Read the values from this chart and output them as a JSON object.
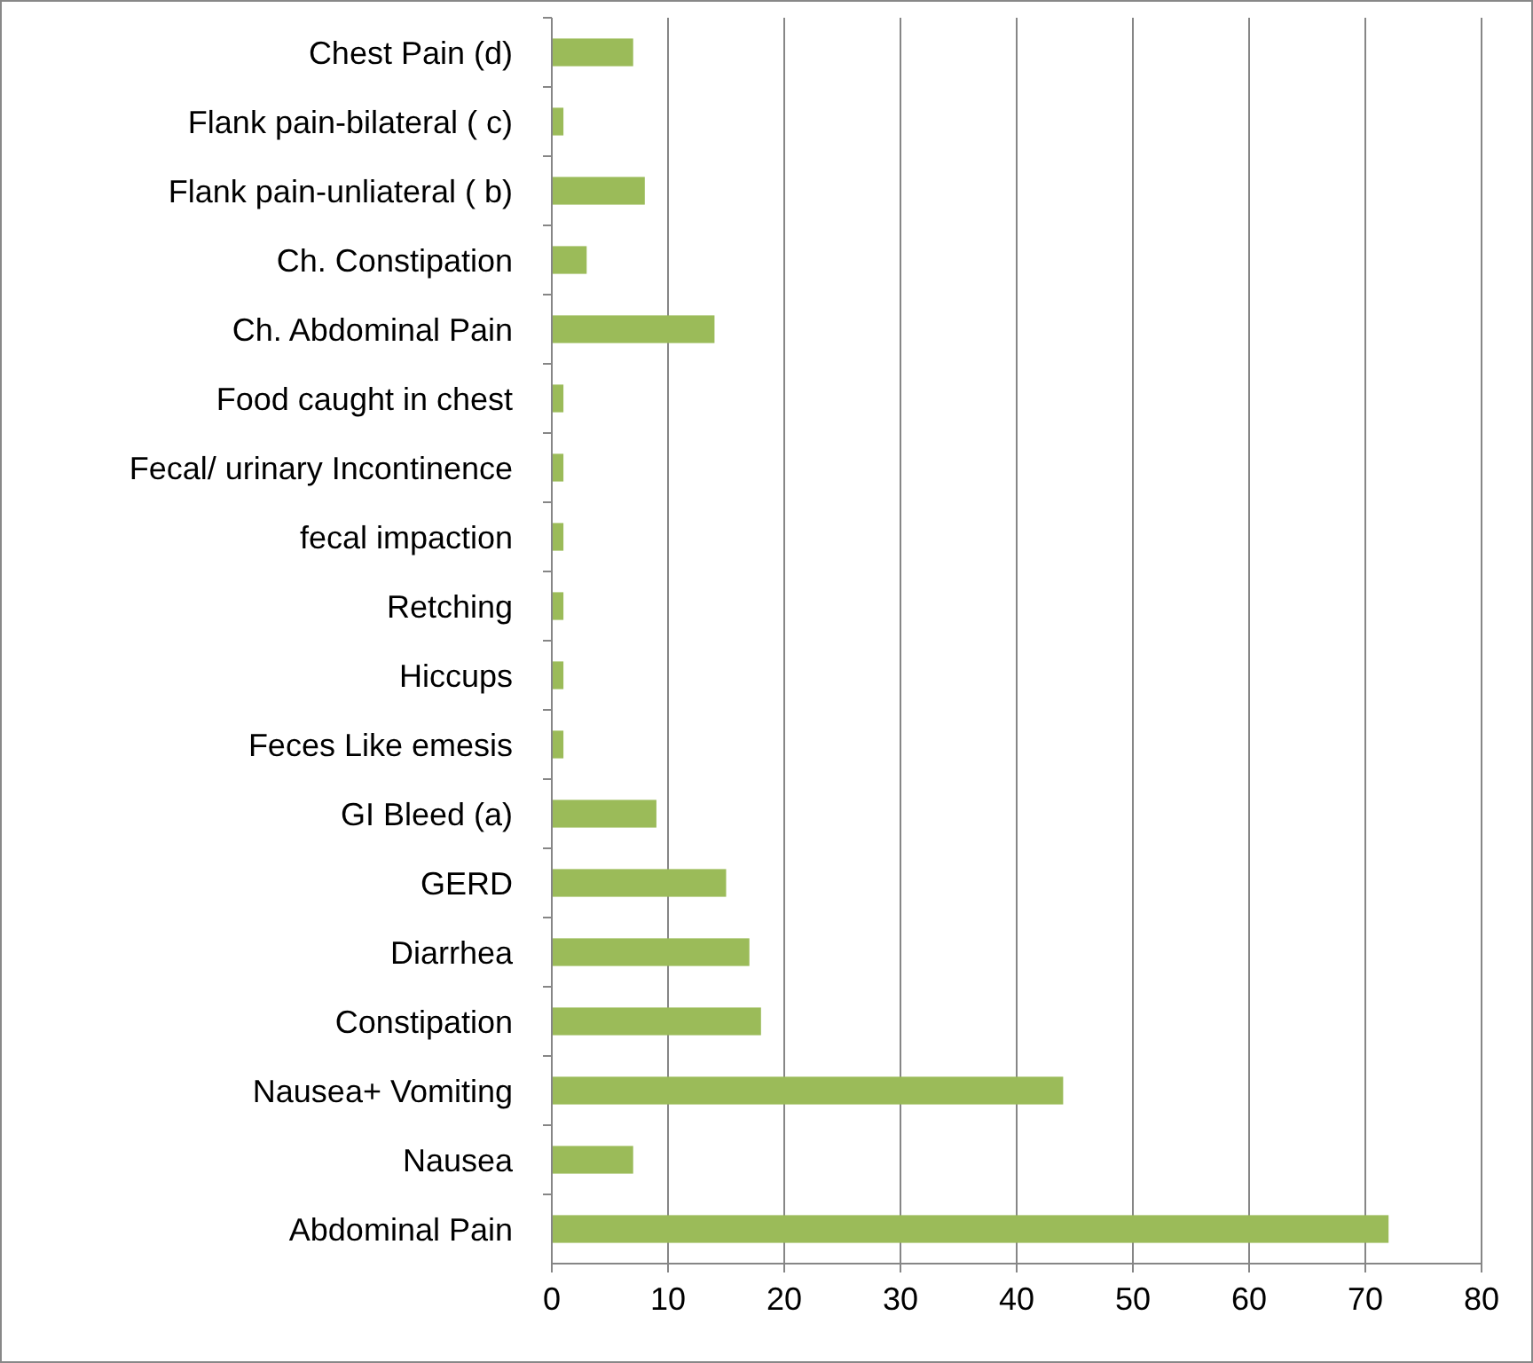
{
  "chart_data": {
    "type": "bar",
    "orientation": "horizontal",
    "categories": [
      "Chest Pain  (d)",
      "Flank pain-bilateral  (  c)",
      "Flank pain-unliateral  ( b)",
      "Ch. Constipation",
      "Ch. Abdominal Pain",
      "Food caught in chest",
      "Fecal/ urinary Incontinence",
      "fecal impaction",
      "Retching",
      "Hiccups",
      "Feces Like emesis",
      "GI Bleed  (a)",
      "GERD",
      "Diarrhea",
      "Constipation",
      "Nausea+ Vomiting",
      "Nausea",
      "Abdominal Pain"
    ],
    "values": [
      7,
      1,
      8,
      3,
      14,
      1,
      1,
      1,
      1,
      1,
      1,
      9,
      15,
      17,
      18,
      44,
      7,
      72
    ],
    "color": "#9bbb59",
    "xlim": [
      0,
      80
    ],
    "xticks": [
      0,
      10,
      20,
      30,
      40,
      50,
      60,
      70,
      80
    ],
    "grid": "x"
  }
}
